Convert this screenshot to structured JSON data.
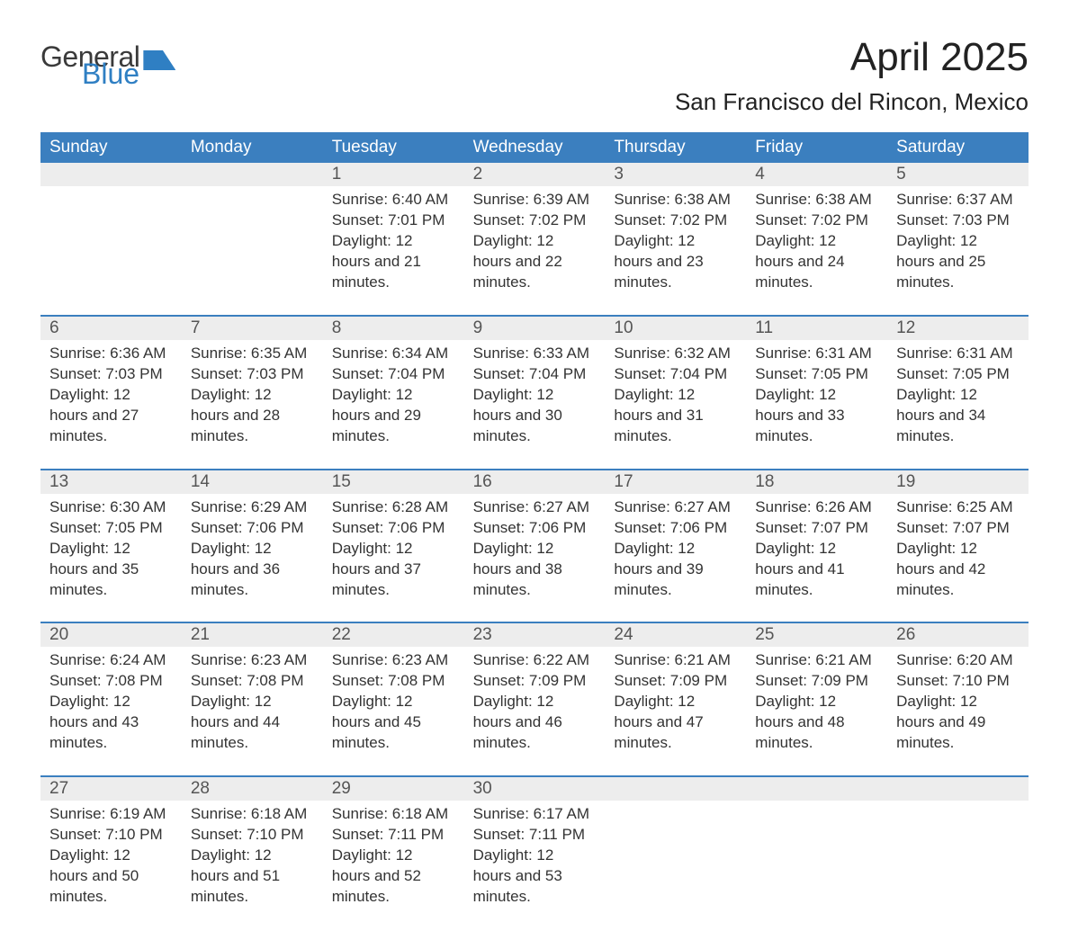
{
  "brand": {
    "part1": "General",
    "part2": "Blue"
  },
  "title": "April 2025",
  "location": "San Francisco del Rincon, Mexico",
  "colors": {
    "header_bg": "#3b7fbf",
    "header_text": "#ffffff",
    "strip_bg": "#ededed",
    "week_border": "#3b7fbf",
    "body_text": "#333333",
    "brand_blue": "#2f7fc3"
  },
  "weekdays": [
    "Sunday",
    "Monday",
    "Tuesday",
    "Wednesday",
    "Thursday",
    "Friday",
    "Saturday"
  ],
  "weeks": [
    {
      "nums": [
        "",
        "",
        "1",
        "2",
        "3",
        "4",
        "5"
      ],
      "cells": [
        null,
        null,
        {
          "sunrise": "6:40 AM",
          "sunset": "7:01 PM",
          "daylight": "12 hours and 21 minutes."
        },
        {
          "sunrise": "6:39 AM",
          "sunset": "7:02 PM",
          "daylight": "12 hours and 22 minutes."
        },
        {
          "sunrise": "6:38 AM",
          "sunset": "7:02 PM",
          "daylight": "12 hours and 23 minutes."
        },
        {
          "sunrise": "6:38 AM",
          "sunset": "7:02 PM",
          "daylight": "12 hours and 24 minutes."
        },
        {
          "sunrise": "6:37 AM",
          "sunset": "7:03 PM",
          "daylight": "12 hours and 25 minutes."
        }
      ]
    },
    {
      "nums": [
        "6",
        "7",
        "8",
        "9",
        "10",
        "11",
        "12"
      ],
      "cells": [
        {
          "sunrise": "6:36 AM",
          "sunset": "7:03 PM",
          "daylight": "12 hours and 27 minutes."
        },
        {
          "sunrise": "6:35 AM",
          "sunset": "7:03 PM",
          "daylight": "12 hours and 28 minutes."
        },
        {
          "sunrise": "6:34 AM",
          "sunset": "7:04 PM",
          "daylight": "12 hours and 29 minutes."
        },
        {
          "sunrise": "6:33 AM",
          "sunset": "7:04 PM",
          "daylight": "12 hours and 30 minutes."
        },
        {
          "sunrise": "6:32 AM",
          "sunset": "7:04 PM",
          "daylight": "12 hours and 31 minutes."
        },
        {
          "sunrise": "6:31 AM",
          "sunset": "7:05 PM",
          "daylight": "12 hours and 33 minutes."
        },
        {
          "sunrise": "6:31 AM",
          "sunset": "7:05 PM",
          "daylight": "12 hours and 34 minutes."
        }
      ]
    },
    {
      "nums": [
        "13",
        "14",
        "15",
        "16",
        "17",
        "18",
        "19"
      ],
      "cells": [
        {
          "sunrise": "6:30 AM",
          "sunset": "7:05 PM",
          "daylight": "12 hours and 35 minutes."
        },
        {
          "sunrise": "6:29 AM",
          "sunset": "7:06 PM",
          "daylight": "12 hours and 36 minutes."
        },
        {
          "sunrise": "6:28 AM",
          "sunset": "7:06 PM",
          "daylight": "12 hours and 37 minutes."
        },
        {
          "sunrise": "6:27 AM",
          "sunset": "7:06 PM",
          "daylight": "12 hours and 38 minutes."
        },
        {
          "sunrise": "6:27 AM",
          "sunset": "7:06 PM",
          "daylight": "12 hours and 39 minutes."
        },
        {
          "sunrise": "6:26 AM",
          "sunset": "7:07 PM",
          "daylight": "12 hours and 41 minutes."
        },
        {
          "sunrise": "6:25 AM",
          "sunset": "7:07 PM",
          "daylight": "12 hours and 42 minutes."
        }
      ]
    },
    {
      "nums": [
        "20",
        "21",
        "22",
        "23",
        "24",
        "25",
        "26"
      ],
      "cells": [
        {
          "sunrise": "6:24 AM",
          "sunset": "7:08 PM",
          "daylight": "12 hours and 43 minutes."
        },
        {
          "sunrise": "6:23 AM",
          "sunset": "7:08 PM",
          "daylight": "12 hours and 44 minutes."
        },
        {
          "sunrise": "6:23 AM",
          "sunset": "7:08 PM",
          "daylight": "12 hours and 45 minutes."
        },
        {
          "sunrise": "6:22 AM",
          "sunset": "7:09 PM",
          "daylight": "12 hours and 46 minutes."
        },
        {
          "sunrise": "6:21 AM",
          "sunset": "7:09 PM",
          "daylight": "12 hours and 47 minutes."
        },
        {
          "sunrise": "6:21 AM",
          "sunset": "7:09 PM",
          "daylight": "12 hours and 48 minutes."
        },
        {
          "sunrise": "6:20 AM",
          "sunset": "7:10 PM",
          "daylight": "12 hours and 49 minutes."
        }
      ]
    },
    {
      "nums": [
        "27",
        "28",
        "29",
        "30",
        "",
        "",
        ""
      ],
      "cells": [
        {
          "sunrise": "6:19 AM",
          "sunset": "7:10 PM",
          "daylight": "12 hours and 50 minutes."
        },
        {
          "sunrise": "6:18 AM",
          "sunset": "7:10 PM",
          "daylight": "12 hours and 51 minutes."
        },
        {
          "sunrise": "6:18 AM",
          "sunset": "7:11 PM",
          "daylight": "12 hours and 52 minutes."
        },
        {
          "sunrise": "6:17 AM",
          "sunset": "7:11 PM",
          "daylight": "12 hours and 53 minutes."
        },
        null,
        null,
        null
      ]
    }
  ],
  "labels": {
    "sunrise": "Sunrise: ",
    "sunset": "Sunset: ",
    "daylight": "Daylight: "
  }
}
